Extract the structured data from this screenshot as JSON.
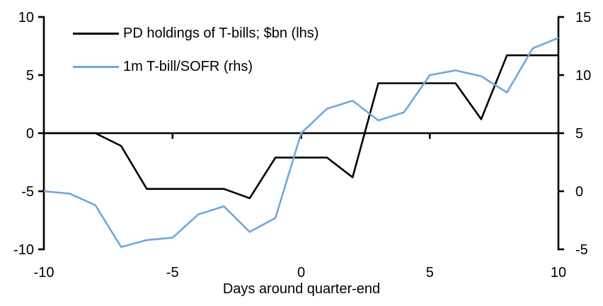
{
  "chart_data": {
    "type": "line",
    "xlabel": "Days around quarter-end",
    "x": [
      -10,
      -9,
      -8,
      -7,
      -6,
      -5,
      -4,
      -3,
      -2,
      -1,
      0,
      1,
      2,
      3,
      4,
      5,
      6,
      7,
      8,
      9,
      10
    ],
    "series": [
      {
        "name": "PD holdings of T-bills; $bn (lhs)",
        "axis": "left",
        "color": "#000000",
        "values": [
          0,
          0,
          0,
          -1.1,
          -4.8,
          -4.8,
          -4.8,
          -4.8,
          -5.6,
          -2.1,
          -2.1,
          -2.1,
          -3.8,
          4.3,
          4.3,
          4.3,
          4.3,
          1.2,
          6.7,
          6.7,
          6.7
        ]
      },
      {
        "name": "1m T-bill/SOFR (rhs)",
        "axis": "right",
        "color": "#6FA8DC",
        "values": [
          0.0,
          -0.2,
          -1.2,
          -4.8,
          -4.2,
          -4.0,
          -2.0,
          -1.3,
          -3.5,
          -2.3,
          5.0,
          7.1,
          7.8,
          6.1,
          6.8,
          10.0,
          10.4,
          9.9,
          8.5,
          12.3,
          13.2
        ]
      }
    ],
    "xlim": [
      -10,
      10
    ],
    "ylim_left": [
      -10,
      10
    ],
    "ylim_right": [
      -5,
      15
    ],
    "left_axis_ticks": [
      "10",
      "5",
      "0",
      "-5",
      "-10"
    ],
    "left_axis_tick_values": [
      10,
      5,
      0,
      -5,
      -10
    ],
    "right_axis_ticks": [
      "15",
      "10",
      "5",
      "0",
      "-5"
    ],
    "right_axis_tick_values": [
      15,
      10,
      5,
      0,
      -5
    ],
    "x_tick_labels": [
      "-10",
      "-5",
      "0",
      "5",
      "10"
    ],
    "x_tick_label_values": [
      -10,
      -5,
      0,
      5,
      10
    ],
    "x_tick_mark_values": [
      -5,
      0,
      5
    ],
    "grid": false,
    "legend_position": "top-left-inside",
    "axis_color": "#000000"
  }
}
